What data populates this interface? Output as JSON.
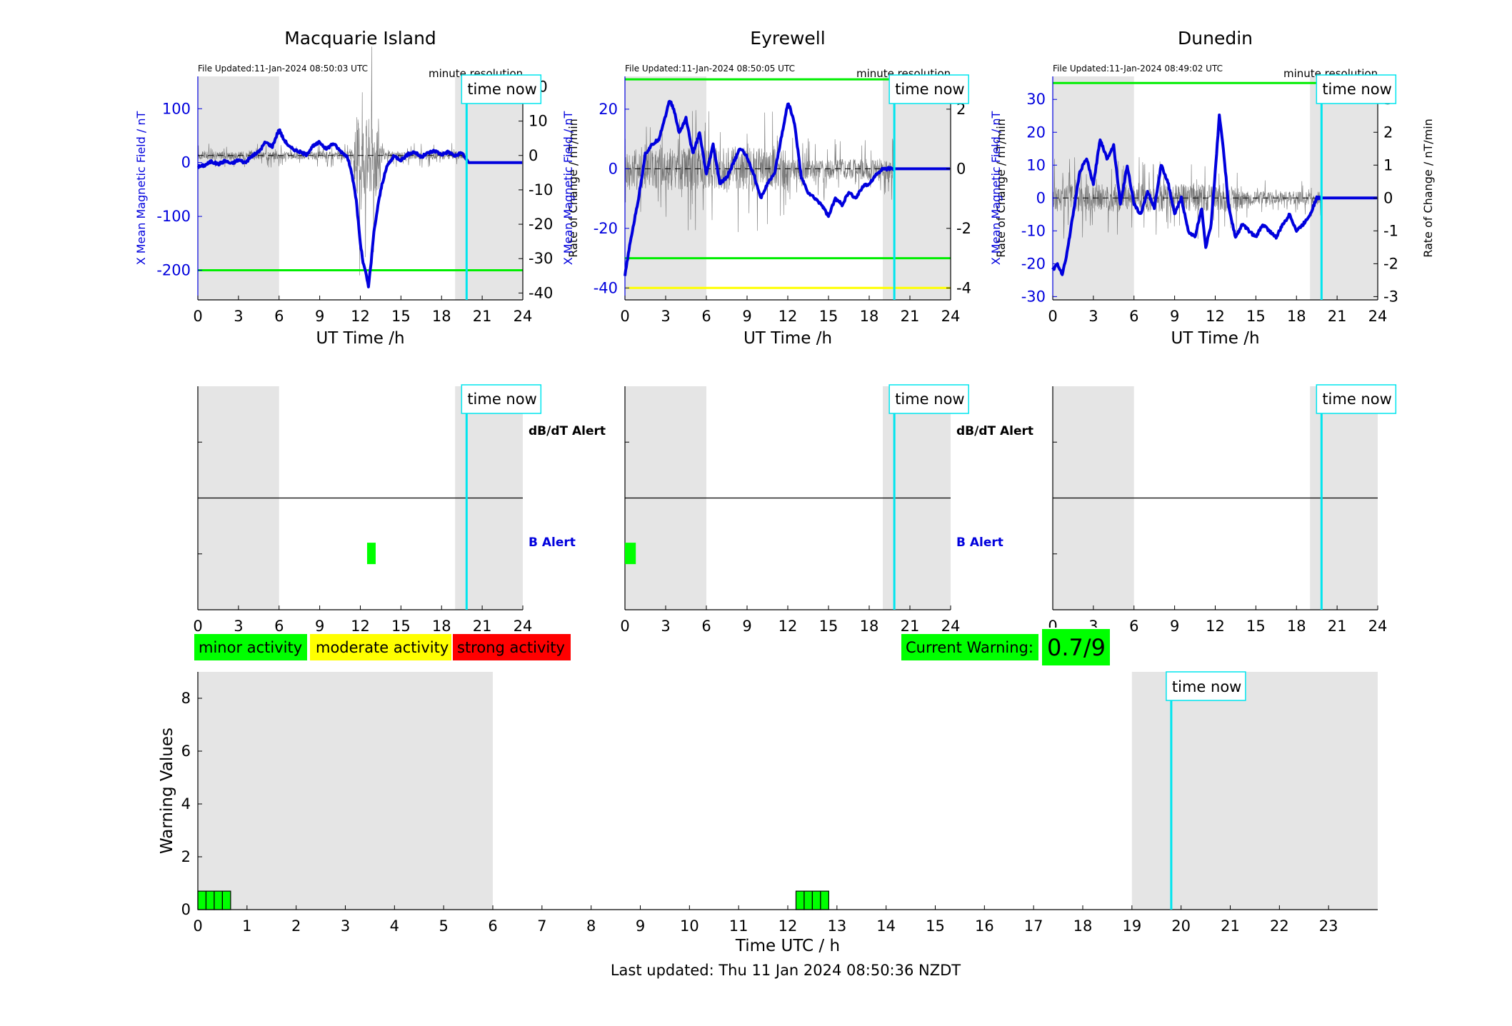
{
  "page": {
    "footer": "Last updated: Thu 11 Jan 2024 08:50:36 NZDT",
    "legend": [
      {
        "label": "minor activity",
        "color": "#00ff00"
      },
      {
        "label": "moderate activity",
        "color": "#ffff00"
      },
      {
        "label": "strong activity",
        "color": "#ff0000"
      }
    ],
    "current_warning_label": "Current Warning:",
    "current_warning_value": "0.7/9",
    "time_now_label": "time now",
    "minute_resolution_label": "minute resolution",
    "dbdt_alert_label": "dB/dT Alert",
    "b_alert_label": "B Alert",
    "colors": {
      "field": "#0000dd",
      "rate": "#555555",
      "threshold_green": "#00ee00",
      "threshold_yellow": "#ffff00",
      "night_shade": "#e5e5e5",
      "time_now": "#00e5ee",
      "alert_green": "#00ff00"
    }
  },
  "chart_data": [
    {
      "type": "line",
      "title": "Macquarie Island",
      "file_updated": "File Updated:11-Jan-2024 08:50:03 UTC",
      "xlabel": "UT Time /h",
      "ylabel_left": "X Mean Magnetic Field / nT",
      "ylabel_right": "Rate of Change / nT/min",
      "xlim": [
        0,
        24
      ],
      "xticks": [
        0,
        3,
        6,
        9,
        12,
        15,
        18,
        21,
        24
      ],
      "ylim_left": [
        -255,
        160
      ],
      "yticks_left": [
        -200,
        -100,
        0,
        100
      ],
      "ylim_right": [
        -42,
        23
      ],
      "yticks_right": [
        -40,
        -30,
        -20,
        -10,
        0,
        10,
        20
      ],
      "night_bands": [
        [
          0,
          6
        ],
        [
          19.0,
          24
        ]
      ],
      "time_now": 19.85,
      "thresholds_left": [
        {
          "y": -200,
          "color": "green"
        }
      ],
      "rate_noise": {
        "quiet": 2,
        "storm_window": [
          11.5,
          13.5
        ],
        "storm": 20
      },
      "series": [
        {
          "axis": "left",
          "x": [
            0,
            0.5,
            1,
            1.5,
            2,
            2.5,
            3,
            3.5,
            4,
            4.5,
            5,
            5.5,
            6,
            6.3,
            6.8,
            7.5,
            8,
            8.5,
            9,
            9.5,
            10,
            10.5,
            11,
            11.3,
            11.7,
            12,
            12.2,
            12.4,
            12.6,
            12.8,
            13,
            13.3,
            13.6,
            14,
            14.5,
            15,
            15.5,
            16,
            16.5,
            17,
            17.5,
            18,
            18.5,
            19,
            19.5,
            19.8,
            20,
            21,
            24
          ],
          "y": [
            -8,
            -5,
            2,
            -3,
            3,
            -2,
            5,
            0,
            12,
            20,
            38,
            30,
            62,
            45,
            28,
            20,
            15,
            30,
            38,
            25,
            36,
            22,
            12,
            -10,
            -70,
            -150,
            -185,
            -205,
            -230,
            -185,
            -130,
            -80,
            -40,
            -5,
            12,
            5,
            15,
            20,
            10,
            18,
            22,
            15,
            20,
            12,
            18,
            8,
            0,
            0,
            0
          ]
        }
      ]
    },
    {
      "type": "line",
      "title": "Eyrewell",
      "file_updated": "File Updated:11-Jan-2024 08:50:05 UTC",
      "xlabel": "UT Time /h",
      "ylabel_left": "X Mean Magnetic Field / nT",
      "ylabel_right": "Rate of Change / nT/min",
      "xlim": [
        0,
        24
      ],
      "xticks": [
        0,
        3,
        6,
        9,
        12,
        15,
        18,
        21,
        24
      ],
      "ylim_left": [
        -44,
        31
      ],
      "yticks_left": [
        -40,
        -20,
        0,
        20
      ],
      "ylim_right": [
        -4.4,
        3.1
      ],
      "yticks_right": [
        -4,
        -2,
        0,
        2
      ],
      "night_bands": [
        [
          0,
          6
        ],
        [
          19.0,
          24
        ]
      ],
      "time_now": 19.85,
      "thresholds_left": [
        {
          "y": 30,
          "color": "green"
        },
        {
          "y": -30,
          "color": "green"
        },
        {
          "y": -40,
          "color": "yellow"
        }
      ],
      "rate_noise": {
        "quiet": 0.6,
        "storm_window": [
          0,
          12
        ],
        "storm": 1.2
      },
      "series": [
        {
          "axis": "left",
          "x": [
            0,
            0.2,
            0.5,
            1,
            1.5,
            2,
            2.5,
            3,
            3.3,
            3.6,
            4,
            4.5,
            5,
            5.5,
            6,
            6.5,
            7,
            7.5,
            8,
            8.5,
            9,
            9.5,
            10,
            10.5,
            11,
            11.5,
            12,
            12.2,
            12.5,
            13,
            13.5,
            14,
            14.5,
            15,
            15.5,
            16,
            16.5,
            17,
            17.5,
            18,
            18.5,
            19,
            19.5,
            20,
            24
          ],
          "y": [
            -36,
            -30,
            -22,
            -10,
            5,
            8,
            10,
            18,
            23,
            20,
            12,
            17,
            5,
            12,
            -2,
            8,
            -5,
            -3,
            2,
            7,
            4,
            -2,
            -10,
            -5,
            -2,
            10,
            22,
            20,
            15,
            -3,
            -8,
            -10,
            -12,
            -16,
            -10,
            -12,
            -8,
            -10,
            -6,
            -5,
            -2,
            0,
            0,
            0,
            0
          ]
        }
      ]
    },
    {
      "type": "line",
      "title": "Dunedin",
      "file_updated": "File Updated:11-Jan-2024 08:49:02 UTC",
      "xlabel": "UT Time /h",
      "ylabel_left": "X Mean Magnetic Field / nT",
      "ylabel_right": "Rate of Change / nT/min",
      "xlim": [
        0,
        24
      ],
      "xticks": [
        0,
        3,
        6,
        9,
        12,
        15,
        18,
        21,
        24
      ],
      "ylim_left": [
        -31,
        37
      ],
      "yticks_left": [
        -30,
        -20,
        -10,
        0,
        10,
        20,
        30
      ],
      "ylim_right": [
        -3.1,
        3.7
      ],
      "yticks_right": [
        -3,
        -2,
        -1,
        0,
        1,
        2,
        3
      ],
      "night_bands": [
        [
          0,
          6
        ],
        [
          19.0,
          24
        ]
      ],
      "time_now": 19.85,
      "thresholds_left": [
        {
          "y": 35,
          "color": "green"
        }
      ],
      "rate_noise": {
        "quiet": 0.35,
        "storm_window": [
          0,
          14
        ],
        "storm": 0.7
      },
      "series": [
        {
          "axis": "left",
          "x": [
            0,
            0.3,
            0.7,
            1,
            1.5,
            2,
            2.5,
            3,
            3.5,
            4,
            4.5,
            5,
            5.5,
            6,
            6.5,
            7,
            7.5,
            8,
            8.5,
            9,
            9.5,
            10,
            10.5,
            11,
            11.3,
            11.7,
            12,
            12.3,
            12.6,
            13,
            13.5,
            14,
            14.5,
            15,
            15.5,
            16,
            16.5,
            17,
            17.5,
            18,
            18.5,
            19,
            19.5,
            20,
            24
          ],
          "y": [
            -22,
            -20,
            -23,
            -18,
            -5,
            8,
            12,
            4,
            18,
            12,
            16,
            -2,
            10,
            -2,
            -5,
            2,
            -3,
            10,
            5,
            -5,
            0,
            -10,
            -12,
            -3,
            -15,
            -8,
            8,
            25,
            15,
            -3,
            -12,
            -8,
            -10,
            -12,
            -8,
            -10,
            -12,
            -8,
            -5,
            -10,
            -8,
            -5,
            0,
            0,
            0
          ]
        }
      ]
    },
    {
      "type": "bar",
      "title": "",
      "xlim": [
        0,
        24
      ],
      "xticks": [
        0,
        3,
        6,
        9,
        12,
        15,
        18,
        21,
        24
      ],
      "ylim": [
        0,
        2
      ],
      "row_labels": [
        "dB/dT Alert",
        "B Alert"
      ],
      "night_bands": [
        [
          0,
          6
        ],
        [
          19.0,
          24
        ]
      ],
      "time_now": 19.85,
      "alerts": [
        {
          "row": "B Alert",
          "from": 12.5,
          "to": 13.0
        }
      ]
    },
    {
      "type": "bar",
      "title": "",
      "xlim": [
        0,
        24
      ],
      "xticks": [
        0,
        3,
        6,
        9,
        12,
        15,
        18,
        21,
        24
      ],
      "ylim": [
        0,
        2
      ],
      "row_labels": [
        "dB/dT Alert",
        "B Alert"
      ],
      "night_bands": [
        [
          0,
          6
        ],
        [
          19.0,
          24
        ]
      ],
      "time_now": 19.85,
      "alerts": [
        {
          "row": "B Alert",
          "from": 0.0,
          "to": 0.8
        }
      ]
    },
    {
      "type": "bar",
      "title": "",
      "xlim": [
        0,
        24
      ],
      "xticks": [
        0,
        3,
        6,
        9,
        12,
        15,
        18,
        21,
        24
      ],
      "ylim": [
        0,
        2
      ],
      "row_labels": [],
      "night_bands": [
        [
          0,
          6
        ],
        [
          19.0,
          24
        ]
      ],
      "time_now": 19.85,
      "alerts": []
    },
    {
      "type": "bar",
      "title": "",
      "xlabel": "Time UTC / h",
      "ylabel": "Warning Values",
      "xlim": [
        0,
        24
      ],
      "xticks": [
        0,
        1,
        2,
        3,
        4,
        5,
        6,
        7,
        8,
        9,
        10,
        11,
        12,
        13,
        14,
        15,
        16,
        17,
        18,
        19,
        20,
        21,
        22,
        23
      ],
      "ylim": [
        0,
        9
      ],
      "yticks": [
        0,
        2,
        4,
        6,
        8
      ],
      "night_bands": [
        [
          0,
          6
        ],
        [
          19.0,
          24
        ]
      ],
      "time_now": 19.8,
      "bars": [
        {
          "x": 0.0,
          "width": 0.1667,
          "value": 0.7
        },
        {
          "x": 0.1667,
          "width": 0.1667,
          "value": 0.7
        },
        {
          "x": 0.3333,
          "width": 0.1667,
          "value": 0.7
        },
        {
          "x": 0.5,
          "width": 0.1667,
          "value": 0.7
        },
        {
          "x": 12.1667,
          "width": 0.1667,
          "value": 0.7
        },
        {
          "x": 12.3333,
          "width": 0.1667,
          "value": 0.7
        },
        {
          "x": 12.5,
          "width": 0.1667,
          "value": 0.7
        },
        {
          "x": 12.6667,
          "width": 0.1667,
          "value": 0.7
        }
      ]
    }
  ]
}
